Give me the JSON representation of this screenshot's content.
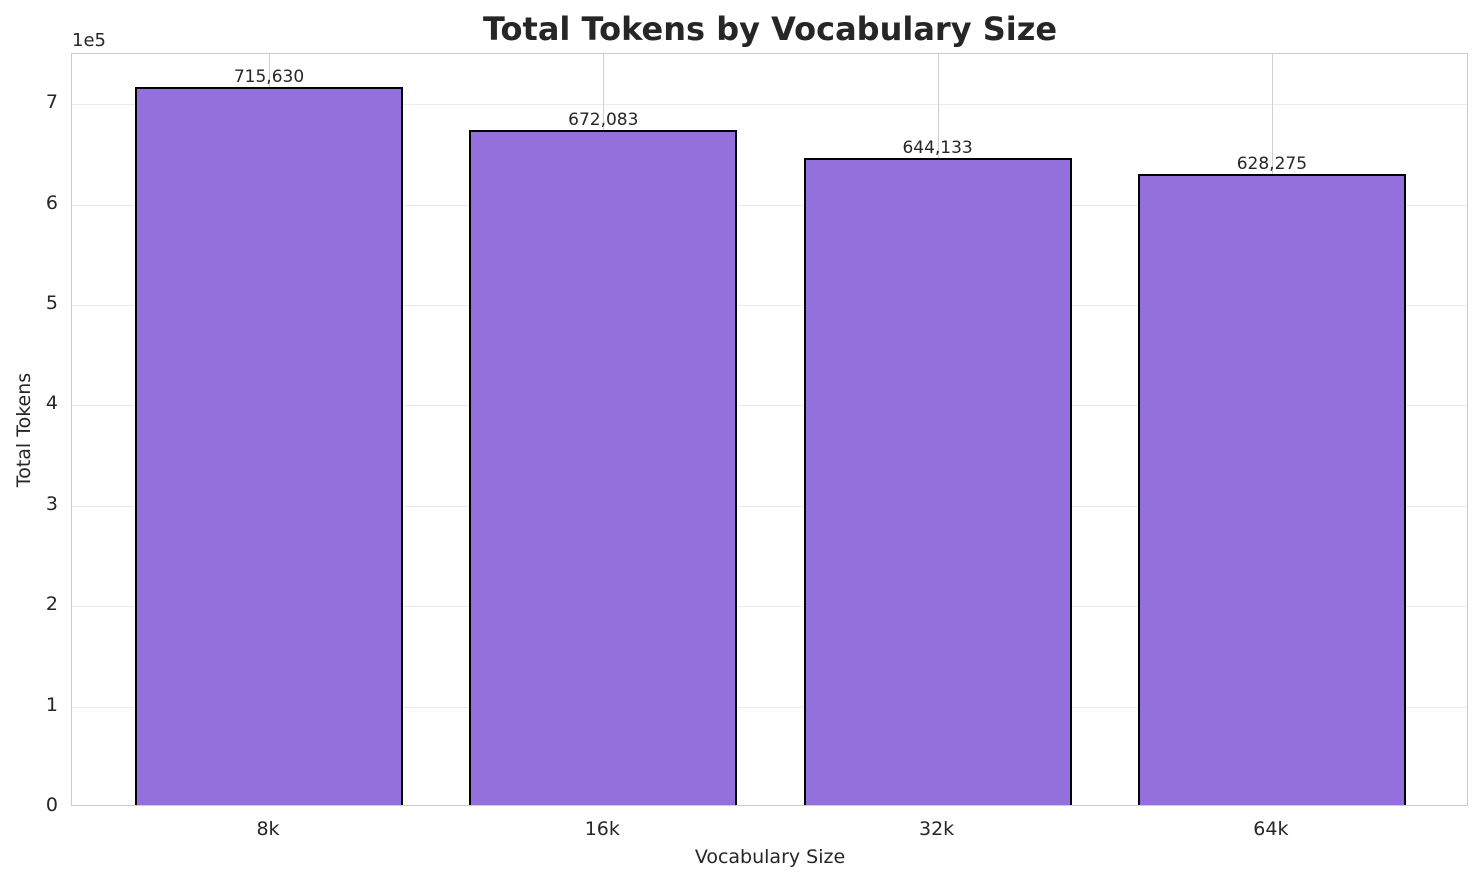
{
  "chart_data": {
    "type": "bar",
    "title": "Total Tokens by Vocabulary Size",
    "xlabel": "Vocabulary Size",
    "ylabel": "Total Tokens",
    "y_exponent_label": "1e5",
    "categories": [
      "8k",
      "16k",
      "32k",
      "64k"
    ],
    "values": [
      715630,
      672083,
      644133,
      628275
    ],
    "value_labels": [
      "715,630",
      "672,083",
      "644,133",
      "628,275"
    ],
    "yticks": [
      "0",
      "1",
      "2",
      "3",
      "4",
      "5",
      "6",
      "7"
    ],
    "ylim": [
      0,
      750000
    ],
    "grid": true,
    "bar_color": "#9370db",
    "edge_color": "#000000"
  }
}
